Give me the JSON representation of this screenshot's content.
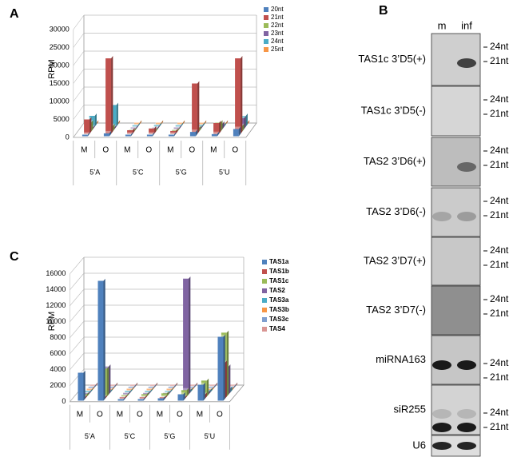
{
  "chart_data": [
    {
      "panel": "A",
      "type": "bar3d",
      "y_label": "RPM",
      "categories": [
        "M",
        "O",
        "M",
        "O",
        "M",
        "O",
        "M",
        "O"
      ],
      "groups": [
        "5’A",
        "5’C",
        "5’G",
        "5’U"
      ],
      "ylim": [
        0,
        30000
      ],
      "yticks": [
        0,
        5000,
        10000,
        15000,
        20000,
        25000,
        30000
      ],
      "series": [
        {
          "name": "20nt",
          "color": "#4f81bd",
          "values": [
            300,
            800,
            100,
            200,
            100,
            1200,
            600,
            2000
          ]
        },
        {
          "name": "21nt",
          "color": "#c0504d",
          "values": [
            4000,
            21000,
            1000,
            1500,
            800,
            14000,
            3000,
            21000
          ]
        },
        {
          "name": "22nt",
          "color": "#9bbb59",
          "values": [
            2500,
            1500,
            300,
            500,
            300,
            1000,
            2500,
            1500
          ]
        },
        {
          "name": "23nt",
          "color": "#8064a2",
          "values": [
            300,
            500,
            100,
            200,
            100,
            400,
            1500,
            3000
          ]
        },
        {
          "name": "24nt",
          "color": "#4bacc6",
          "values": [
            3000,
            6000,
            300,
            500,
            200,
            500,
            500,
            3000
          ]
        },
        {
          "name": "25nt",
          "color": "#f79646",
          "values": [
            200,
            300,
            100,
            200,
            100,
            200,
            200,
            500
          ]
        }
      ]
    },
    {
      "panel": "C",
      "type": "bar3d",
      "y_label": "RPM",
      "categories": [
        "M",
        "O",
        "M",
        "O",
        "M",
        "O",
        "M",
        "O"
      ],
      "groups": [
        "5’A",
        "5’C",
        "5’G",
        "5’U"
      ],
      "ylim": [
        0,
        16000
      ],
      "yticks": [
        0,
        2000,
        4000,
        6000,
        8000,
        10000,
        12000,
        14000,
        16000
      ],
      "series": [
        {
          "name": "TAS1a",
          "color": "#4f81bd",
          "values": [
            3500,
            15000,
            100,
            100,
            300,
            800,
            2000,
            8000
          ]
        },
        {
          "name": "TAS1b",
          "color": "#c0504d",
          "values": [
            200,
            100,
            100,
            100,
            100,
            200,
            500,
            4500
          ]
        },
        {
          "name": "TAS1c",
          "color": "#9bbb59",
          "values": [
            300,
            3500,
            200,
            300,
            400,
            800,
            2000,
            8000
          ]
        },
        {
          "name": "TAS2",
          "color": "#8064a2",
          "values": [
            200,
            3500,
            100,
            200,
            200,
            14500,
            300,
            3500
          ]
        },
        {
          "name": "TAS3a",
          "color": "#4bacc6",
          "values": [
            100,
            100,
            100,
            100,
            100,
            300,
            300,
            500
          ]
        },
        {
          "name": "TAS3b",
          "color": "#f79646",
          "values": [
            100,
            100,
            100,
            100,
            100,
            100,
            100,
            200
          ]
        },
        {
          "name": "TAS3c",
          "color": "#7f9fcf",
          "values": [
            100,
            100,
            100,
            100,
            100,
            100,
            100,
            200
          ]
        },
        {
          "name": "TAS4",
          "color": "#d99694",
          "values": [
            100,
            100,
            100,
            100,
            100,
            100,
            100,
            100
          ]
        }
      ]
    }
  ],
  "blot": {
    "panel": "B",
    "lanes": [
      "m",
      "inf"
    ],
    "rows": [
      {
        "label": "TAS1c 3’D5(+)",
        "markers": [
          "24nt",
          "21nt"
        ]
      },
      {
        "label": "TAS1c 3’D5(-)",
        "markers": [
          "24nt",
          "21nt"
        ]
      },
      {
        "label": "TAS2 3’D6(+)",
        "markers": [
          "24nt",
          "21nt"
        ]
      },
      {
        "label": "TAS2 3’D6(-)",
        "markers": [
          "24nt",
          "21nt"
        ]
      },
      {
        "label": "TAS2 3’D7(+)",
        "markers": [
          "24nt",
          "21nt"
        ]
      },
      {
        "label": "TAS2 3’D7(-)",
        "markers": [
          "24nt",
          "21nt"
        ]
      },
      {
        "label": "miRNA163",
        "markers": [
          "24nt",
          "21nt"
        ]
      },
      {
        "label": "siR255",
        "markers": [
          "24nt",
          "21nt"
        ]
      },
      {
        "label": "U6",
        "markers": []
      }
    ]
  }
}
